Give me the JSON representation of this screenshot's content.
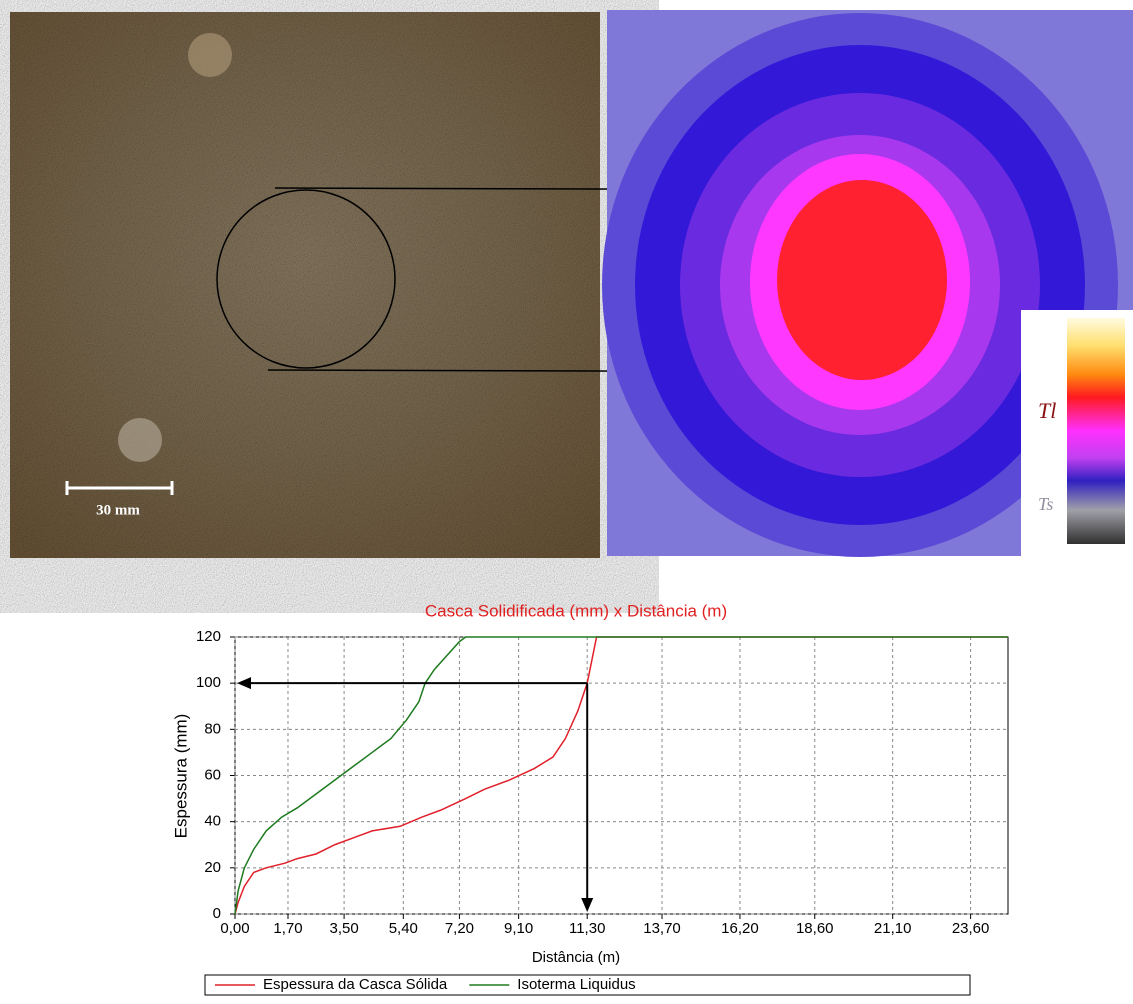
{
  "figure": {
    "scale_label": "30 mm",
    "heatmap_legend": [
      "Tl",
      "Ts"
    ]
  },
  "chart_data": {
    "type": "line",
    "title": "Casca Solidificada (mm) x Distância (m)",
    "x_label": "Distância (m)",
    "y_label": "Espessura (mm)",
    "xlim": [
      0,
      24.8
    ],
    "ylim": [
      0,
      120
    ],
    "xticks": [
      {
        "value": 0,
        "label": "0,00"
      },
      {
        "value": 1.7,
        "label": "1,70"
      },
      {
        "value": 3.5,
        "label": "3,50"
      },
      {
        "value": 5.4,
        "label": "5,40"
      },
      {
        "value": 7.2,
        "label": "7,20"
      },
      {
        "value": 9.1,
        "label": "9,10"
      },
      {
        "value": 11.3,
        "label": "11,30"
      },
      {
        "value": 13.7,
        "label": "13,70"
      },
      {
        "value": 16.2,
        "label": "16,20"
      },
      {
        "value": 18.6,
        "label": "18,60"
      },
      {
        "value": 21.1,
        "label": "21,10"
      },
      {
        "value": 23.6,
        "label": "23,60"
      }
    ],
    "yticks": [
      0,
      20,
      40,
      60,
      80,
      100,
      120
    ],
    "grid": true,
    "series": [
      {
        "name": "Espessura da Casca Sólida",
        "color": "#e0202a",
        "x": [
          0,
          0.1,
          0.3,
          0.6,
          1,
          1.6,
          2,
          2.6,
          3.2,
          3.8,
          4.4,
          5.3,
          6,
          6.6,
          7.4,
          8,
          8.8,
          9.6,
          10.2,
          10.6,
          11,
          11.3,
          11.6,
          24.8
        ],
        "values": [
          0,
          5,
          12,
          18,
          20,
          22,
          24,
          26,
          30,
          33,
          36,
          38,
          42,
          45,
          50,
          54,
          58,
          63,
          68,
          76,
          88,
          100,
          120,
          120
        ]
      },
      {
        "name": "Isoterma Liquidus",
        "color": "#1e7a1e",
        "x": [
          0,
          0.1,
          0.3,
          0.6,
          1,
          1.5,
          2,
          2.6,
          3.2,
          3.8,
          4.4,
          5,
          5.5,
          5.9,
          6.1,
          6.4,
          6.8,
          7.2,
          7.4,
          24.8
        ],
        "values": [
          0,
          10,
          20,
          28,
          36,
          42,
          46,
          52,
          58,
          64,
          70,
          76,
          84,
          92,
          100,
          106,
          112,
          118,
          120,
          120
        ]
      }
    ]
  }
}
